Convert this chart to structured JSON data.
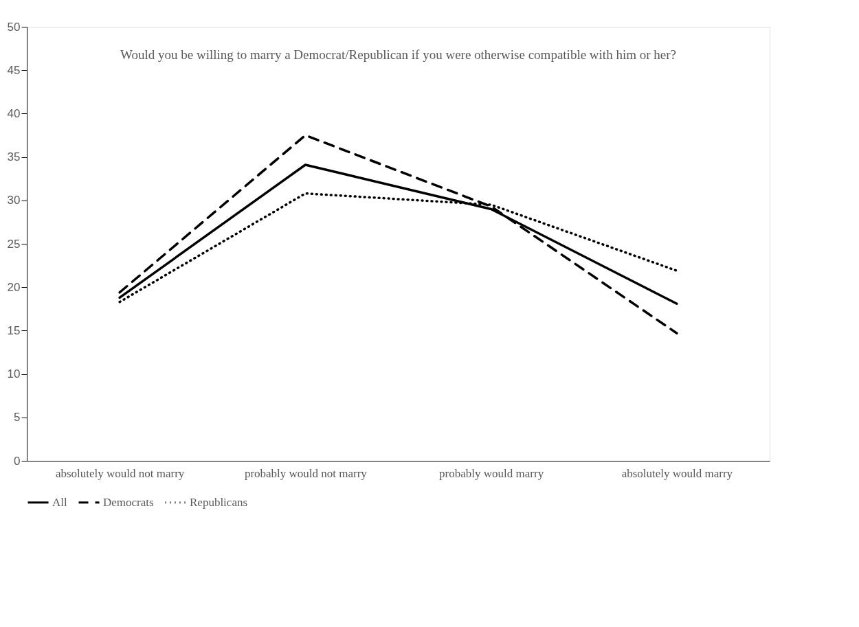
{
  "chart_data": {
    "type": "line",
    "title": "Would you be willing to marry a Democrat/Republican if you were otherwise compatible with him or her?",
    "categories": [
      "absolutely would not marry",
      "probably would not marry",
      "probably would marry",
      "absolutely would marry"
    ],
    "series": [
      {
        "name": "All",
        "color": "#000000",
        "line_style": "solid",
        "values": [
          18.8,
          34.1,
          29.0,
          18.1
        ]
      },
      {
        "name": "Democrats",
        "color": "#000000",
        "line_style": "dashed",
        "values": [
          19.4,
          37.5,
          29.3,
          14.7
        ]
      },
      {
        "name": "Republicans",
        "color": "#000000",
        "line_style": "dotted",
        "values": [
          18.3,
          30.8,
          29.5,
          21.9
        ]
      }
    ],
    "ylim": [
      0,
      50
    ],
    "yticks": [
      0,
      5,
      10,
      15,
      20,
      25,
      30,
      35,
      40,
      45,
      50
    ],
    "grid": false,
    "legend": "bottom",
    "marker": "none"
  }
}
